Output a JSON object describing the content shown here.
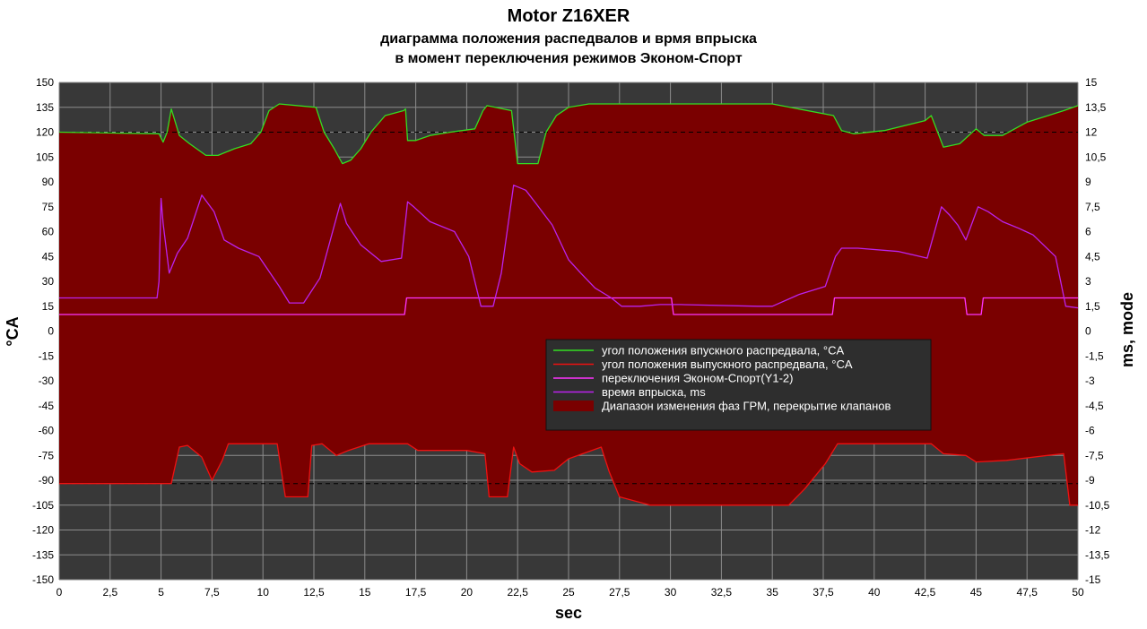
{
  "chart_data": {
    "type": "line",
    "title": "Motor Z16XER",
    "subtitle_line1": "диаграмма положения распедвалов и врмя впрыска",
    "subtitle_line2": "в момент переключения режимов Эконом-Спорт",
    "xlabel": "sec",
    "ylabel_left": "°CA",
    "ylabel_right": "ms, mode",
    "xlim": [
      0,
      50
    ],
    "ylim_left": [
      -150,
      150
    ],
    "ylim_right": [
      -15,
      15
    ],
    "x_ticks": [
      "0",
      "2,5",
      "5",
      "7,5",
      "10",
      "12,5",
      "15",
      "17,5",
      "20",
      "22,5",
      "25",
      "27,5",
      "30",
      "32,5",
      "35",
      "37,5",
      "40",
      "42,5",
      "45",
      "47,5",
      "50"
    ],
    "y_ticks_left": [
      "150",
      "135",
      "120",
      "105",
      "90",
      "75",
      "60",
      "45",
      "30",
      "15",
      "0",
      "-15",
      "-30",
      "-45",
      "-60",
      "-75",
      "-90",
      "-105",
      "-120",
      "-135",
      "-150"
    ],
    "y_ticks_right": [
      "15",
      "13,5",
      "12",
      "10,5",
      "9",
      "7,5",
      "6",
      "4,5",
      "3",
      "1,5",
      "0",
      "-1,5",
      "-3",
      "-4,5",
      "-6",
      "-7,5",
      "-9",
      "-10,5",
      "-12",
      "-13,5",
      "-15"
    ],
    "grid": true,
    "reference_lines": [
      120,
      -92
    ],
    "legend_position": "center-right",
    "colors": {
      "plot_bg": "#383838",
      "grid": "#8c8c8c",
      "intake": "#33dd22",
      "exhaust": "#ee1111",
      "mode": "#ff33ff",
      "injection": "#bb22ee",
      "fill": "#7a0000",
      "legend_bg": "#2e2e2e"
    },
    "series": [
      {
        "name": "угол положения впускного распредвала, °CA",
        "axis": "left",
        "x": [
          0,
          4.9,
          5.1,
          5.3,
          5.5,
          5.9,
          6.4,
          7.2,
          7.8,
          8.6,
          9.4,
          9.9,
          10.3,
          10.8,
          12.6,
          13,
          13.5,
          13.9,
          14.3,
          14.8,
          15.3,
          16,
          16.9,
          17,
          17.1,
          17.5,
          18.2,
          19.2,
          20.4,
          20.8,
          21,
          22.2,
          22.5,
          22.8,
          23.5,
          23.9,
          24.4,
          25,
          26,
          30,
          35,
          38,
          38.4,
          39,
          40.5,
          42.5,
          42.8,
          43.4,
          44.2,
          45,
          45.4,
          46.3,
          47.5,
          49.3,
          50
        ],
        "y": [
          120,
          119,
          114,
          120,
          134,
          118,
          113,
          106,
          106,
          110,
          113,
          120,
          133,
          137,
          135,
          120,
          110,
          101,
          103,
          110,
          120,
          130,
          133,
          134,
          115,
          115,
          118,
          120,
          122,
          133,
          136,
          133,
          101,
          101,
          101,
          120,
          130,
          135,
          137,
          137,
          137,
          130,
          121,
          119,
          121,
          127,
          130,
          111,
          113,
          122,
          118,
          118,
          126,
          133,
          136
        ]
      },
      {
        "name": "угол положения выпускного распредвала, °CA",
        "axis": "left",
        "x": [
          0,
          5.5,
          5.9,
          6.3,
          7,
          7.5,
          8,
          8.3,
          9.5,
          10.7,
          11.1,
          12.2,
          12.4,
          12.9,
          13.3,
          13.6,
          14.2,
          15.2,
          17.1,
          17.6,
          20,
          20.9,
          21.1,
          22,
          22.3,
          22.6,
          23.2,
          24.3,
          25,
          26.6,
          27,
          27.5,
          29,
          32,
          35.8,
          36.6,
          37.6,
          38.2,
          39,
          42.8,
          43.4,
          44.5,
          45,
          46.5,
          48.5,
          49.3,
          49.6,
          50
        ],
        "y": [
          -92,
          -92,
          -70,
          -69,
          -76,
          -90,
          -78,
          -68,
          -68,
          -68,
          -100,
          -100,
          -69,
          -68,
          -72,
          -75,
          -72,
          -68,
          -68,
          -72,
          -72,
          -74,
          -100,
          -100,
          -70,
          -80,
          -85,
          -84,
          -77,
          -70,
          -85,
          -100,
          -105,
          -105,
          -105,
          -95,
          -80,
          -68,
          -68,
          -68,
          -74,
          -75,
          -79,
          -78,
          -75,
          -74,
          -105,
          -105
        ]
      },
      {
        "name": "переключения Эконом-Спорт(Y1-2)",
        "axis": "right",
        "x": [
          0,
          16.95,
          17.05,
          30.05,
          30.15,
          37.95,
          38.05,
          44.45,
          44.55,
          45.25,
          45.35,
          50
        ],
        "y": [
          1,
          1,
          2,
          2,
          1,
          1,
          2,
          2,
          1,
          1,
          2,
          2
        ]
      },
      {
        "name": "время впрыска, ms",
        "axis": "right",
        "x": [
          0,
          4.8,
          4.9,
          5.0,
          5.1,
          5.4,
          5.8,
          6.3,
          7,
          7.6,
          8.1,
          8.8,
          9.8,
          10.8,
          11.3,
          12,
          12.8,
          13.8,
          14.1,
          14.8,
          15.8,
          16.8,
          17.1,
          17.4,
          18.2,
          19.4,
          20.1,
          20.7,
          21.3,
          21.7,
          22.3,
          22.9,
          23.4,
          24.2,
          25,
          25.6,
          26.3,
          27.1,
          27.6,
          28.5,
          29.5,
          30.5,
          34.3,
          35,
          36.3,
          37.6,
          38.1,
          38.4,
          39.2,
          41.2,
          41.9,
          42.6,
          43.3,
          43.7,
          44.1,
          44.5,
          45.1,
          45.6,
          46.3,
          47.1,
          47.8,
          48.9,
          49.4,
          50
        ],
        "y": [
          2,
          2,
          3,
          8,
          6.5,
          3.5,
          4.7,
          5.6,
          8.2,
          7.2,
          5.5,
          5,
          4.5,
          2.7,
          1.7,
          1.7,
          3.2,
          7.7,
          6.5,
          5.2,
          4.2,
          4.4,
          7.8,
          7.5,
          6.6,
          6,
          4.5,
          1.5,
          1.5,
          3.5,
          8.8,
          8.5,
          7.7,
          6.4,
          4.3,
          3.5,
          2.6,
          2,
          1.5,
          1.5,
          1.6,
          1.6,
          1.5,
          1.5,
          2.2,
          2.7,
          4.5,
          5,
          5,
          4.8,
          4.6,
          4.4,
          7.5,
          7,
          6.4,
          5.5,
          7.5,
          7.2,
          6.6,
          6.2,
          5.8,
          4.5,
          1.5,
          1.4
        ]
      }
    ],
    "fill_band": {
      "name": "Диапазон изменения фаз ГРМ, перекрытие клапанов",
      "between": [
        "угол положения впускного распредвала, °CA",
        "угол положения выпускного распредвала, °CA"
      ]
    }
  }
}
